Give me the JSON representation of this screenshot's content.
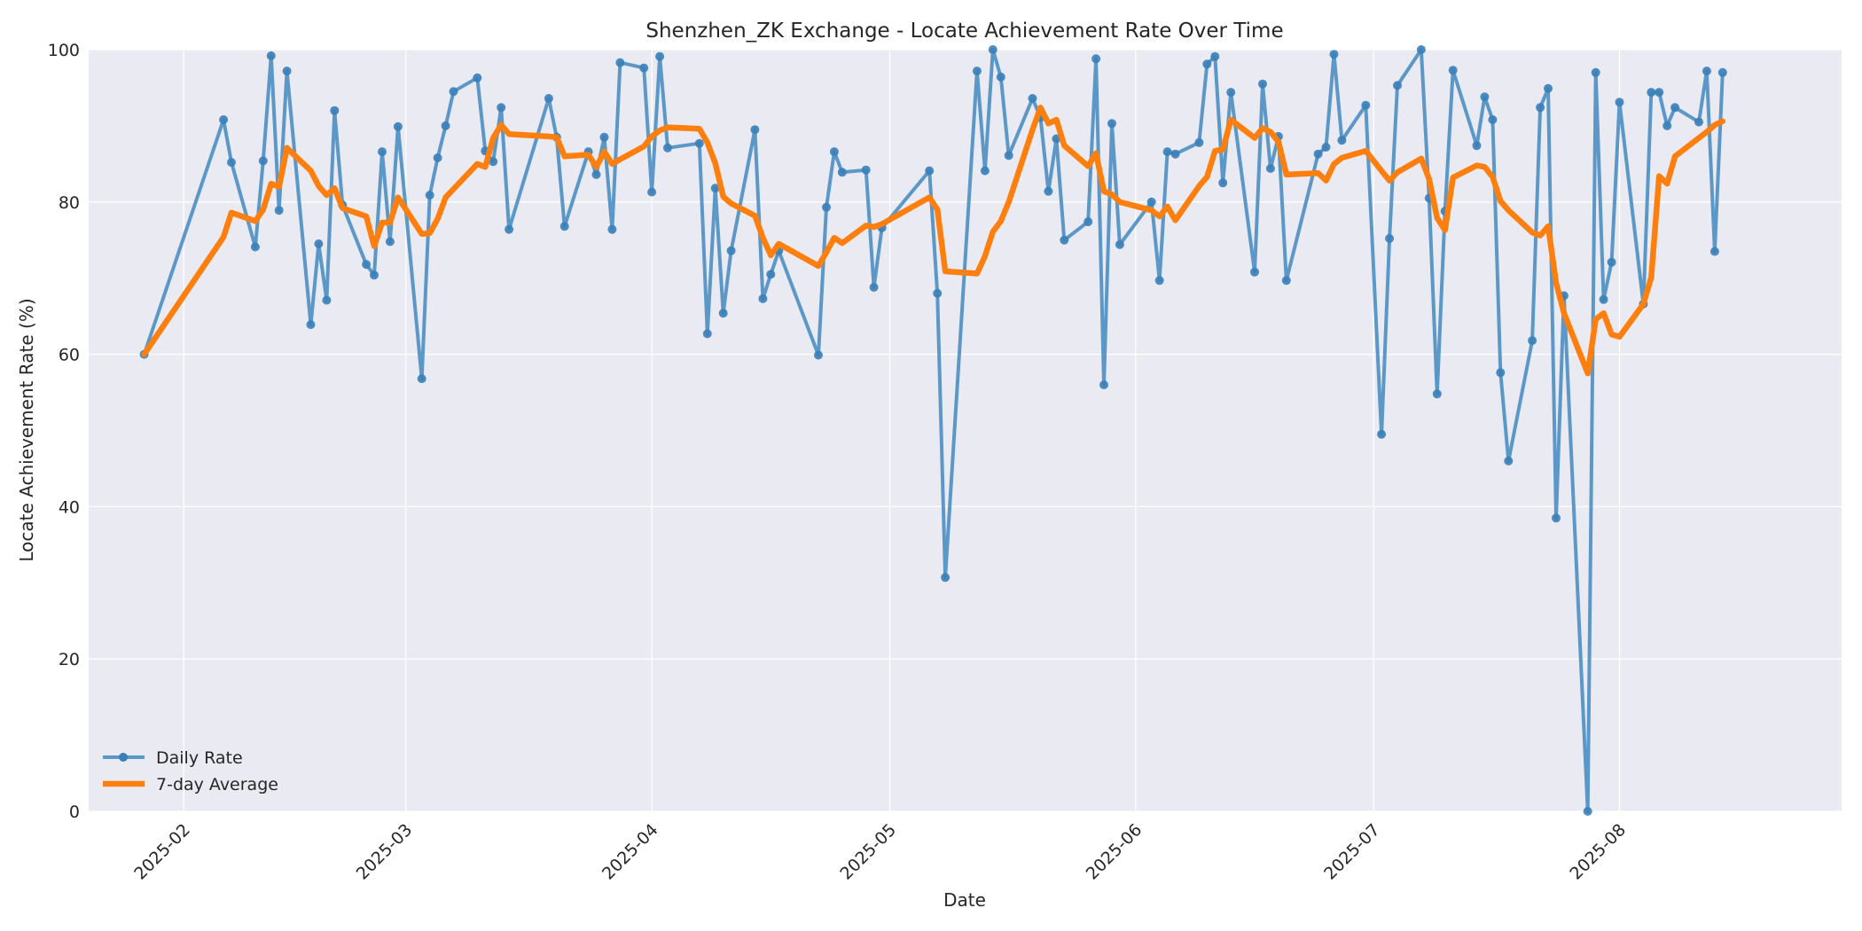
{
  "chart_data": {
    "type": "line",
    "title": "Shenzhen_ZK Exchange - Locate Achievement Rate Over Time",
    "xlabel": "Date",
    "ylabel": "Locate Achievement Rate (%)",
    "ylim": [
      0,
      100
    ],
    "xlim": [
      "2025-01-20",
      "2025-08-29"
    ],
    "yticks": [
      0,
      20,
      40,
      60,
      80,
      100
    ],
    "xticks": [
      "2025-02",
      "2025-03",
      "2025-04",
      "2025-05",
      "2025-06",
      "2025-07",
      "2025-08"
    ],
    "xtick_dates": [
      "2025-02-01",
      "2025-03-01",
      "2025-04-01",
      "2025-05-01",
      "2025-06-01",
      "2025-07-01",
      "2025-08-01"
    ],
    "grid": true,
    "legend_position": "lower left",
    "colors": {
      "daily": "#4c8fc2",
      "avg": "#ff7f0e",
      "plot_bg": "#eaeaf2",
      "grid": "#ffffff"
    },
    "series": [
      {
        "name": "Daily Rate",
        "style": "line-with-markers",
        "points": [
          [
            "2025-01-27",
            60.0
          ],
          [
            "2025-02-06",
            90.8
          ],
          [
            "2025-02-07",
            85.2
          ],
          [
            "2025-02-10",
            74.1
          ],
          [
            "2025-02-11",
            85.4
          ],
          [
            "2025-02-12",
            99.2
          ],
          [
            "2025-02-13",
            78.9
          ],
          [
            "2025-02-14",
            97.2
          ],
          [
            "2025-02-17",
            63.9
          ],
          [
            "2025-02-18",
            74.5
          ],
          [
            "2025-02-19",
            67.1
          ],
          [
            "2025-02-20",
            92.0
          ],
          [
            "2025-02-21",
            79.6
          ],
          [
            "2025-02-24",
            71.8
          ],
          [
            "2025-02-25",
            70.4
          ],
          [
            "2025-02-26",
            86.6
          ],
          [
            "2025-02-27",
            74.8
          ],
          [
            "2025-02-28",
            89.9
          ],
          [
            "2025-03-03",
            56.8
          ],
          [
            "2025-03-04",
            80.9
          ],
          [
            "2025-03-05",
            85.8
          ],
          [
            "2025-03-06",
            90.0
          ],
          [
            "2025-03-07",
            94.5
          ],
          [
            "2025-03-10",
            96.3
          ],
          [
            "2025-03-11",
            86.7
          ],
          [
            "2025-03-12",
            85.3
          ],
          [
            "2025-03-13",
            92.4
          ],
          [
            "2025-03-14",
            76.4
          ],
          [
            "2025-03-19",
            93.6
          ],
          [
            "2025-03-20",
            88.5
          ],
          [
            "2025-03-21",
            76.8
          ],
          [
            "2025-03-24",
            86.6
          ],
          [
            "2025-03-25",
            83.6
          ],
          [
            "2025-03-26",
            88.5
          ],
          [
            "2025-03-27",
            76.4
          ],
          [
            "2025-03-28",
            98.3
          ],
          [
            "2025-03-31",
            97.6
          ],
          [
            "2025-04-01",
            81.3
          ],
          [
            "2025-04-02",
            99.1
          ],
          [
            "2025-04-03",
            87.1
          ],
          [
            "2025-04-07",
            87.7
          ],
          [
            "2025-04-08",
            62.7
          ],
          [
            "2025-04-09",
            81.8
          ],
          [
            "2025-04-10",
            65.4
          ],
          [
            "2025-04-11",
            73.6
          ],
          [
            "2025-04-14",
            89.5
          ],
          [
            "2025-04-15",
            67.3
          ],
          [
            "2025-04-16",
            70.5
          ],
          [
            "2025-04-17",
            73.6
          ],
          [
            "2025-04-22",
            59.9
          ],
          [
            "2025-04-23",
            79.3
          ],
          [
            "2025-04-24",
            86.6
          ],
          [
            "2025-04-25",
            83.9
          ],
          [
            "2025-04-28",
            84.2
          ],
          [
            "2025-04-29",
            68.8
          ],
          [
            "2025-04-30",
            76.6
          ],
          [
            "2025-05-06",
            84.1
          ],
          [
            "2025-05-07",
            68.0
          ],
          [
            "2025-05-08",
            30.7
          ],
          [
            "2025-05-12",
            97.2
          ],
          [
            "2025-05-13",
            84.1
          ],
          [
            "2025-05-14",
            100.0
          ],
          [
            "2025-05-15",
            96.4
          ],
          [
            "2025-05-16",
            86.1
          ],
          [
            "2025-05-19",
            93.6
          ],
          [
            "2025-05-20",
            91.1
          ],
          [
            "2025-05-21",
            81.4
          ],
          [
            "2025-05-22",
            88.3
          ],
          [
            "2025-05-23",
            75.0
          ],
          [
            "2025-05-26",
            77.4
          ],
          [
            "2025-05-27",
            98.8
          ],
          [
            "2025-05-28",
            56.0
          ],
          [
            "2025-05-29",
            90.3
          ],
          [
            "2025-05-30",
            74.4
          ],
          [
            "2025-06-03",
            80.0
          ],
          [
            "2025-06-04",
            69.7
          ],
          [
            "2025-06-05",
            86.6
          ],
          [
            "2025-06-06",
            86.3
          ],
          [
            "2025-06-09",
            87.8
          ],
          [
            "2025-06-10",
            98.1
          ],
          [
            "2025-06-11",
            99.1
          ],
          [
            "2025-06-12",
            82.5
          ],
          [
            "2025-06-13",
            94.4
          ],
          [
            "2025-06-16",
            70.8
          ],
          [
            "2025-06-17",
            95.5
          ],
          [
            "2025-06-18",
            84.4
          ],
          [
            "2025-06-19",
            88.6
          ],
          [
            "2025-06-20",
            69.7
          ],
          [
            "2025-06-24",
            86.3
          ],
          [
            "2025-06-25",
            87.2
          ],
          [
            "2025-06-26",
            99.4
          ],
          [
            "2025-06-27",
            88.1
          ],
          [
            "2025-06-30",
            92.7
          ],
          [
            "2025-07-02",
            49.5
          ],
          [
            "2025-07-03",
            75.2
          ],
          [
            "2025-07-04",
            95.3
          ],
          [
            "2025-07-07",
            100.0
          ],
          [
            "2025-07-08",
            80.5
          ],
          [
            "2025-07-09",
            54.8
          ],
          [
            "2025-07-10",
            78.8
          ],
          [
            "2025-07-11",
            97.3
          ],
          [
            "2025-07-14",
            87.4
          ],
          [
            "2025-07-15",
            93.8
          ],
          [
            "2025-07-16",
            90.8
          ],
          [
            "2025-07-17",
            57.6
          ],
          [
            "2025-07-18",
            46.0
          ],
          [
            "2025-07-21",
            61.8
          ],
          [
            "2025-07-22",
            92.4
          ],
          [
            "2025-07-23",
            94.9
          ],
          [
            "2025-07-24",
            38.5
          ],
          [
            "2025-07-25",
            67.7
          ],
          [
            "2025-07-28",
            0.0
          ],
          [
            "2025-07-29",
            97.0
          ],
          [
            "2025-07-30",
            67.2
          ],
          [
            "2025-07-31",
            72.1
          ],
          [
            "2025-08-01",
            93.1
          ],
          [
            "2025-08-04",
            66.6
          ],
          [
            "2025-08-05",
            94.4
          ],
          [
            "2025-08-06",
            94.4
          ],
          [
            "2025-08-07",
            90.0
          ],
          [
            "2025-08-08",
            92.4
          ],
          [
            "2025-08-11",
            90.5
          ],
          [
            "2025-08-12",
            97.2
          ],
          [
            "2025-08-13",
            73.5
          ],
          [
            "2025-08-14",
            97.0
          ]
        ]
      },
      {
        "name": "7-day Average",
        "style": "thick-line",
        "points": [
          [
            "2025-01-27",
            60.0
          ],
          [
            "2025-02-06",
            75.4
          ],
          [
            "2025-02-07",
            78.6
          ],
          [
            "2025-02-10",
            77.5
          ],
          [
            "2025-02-11",
            79.0
          ],
          [
            "2025-02-12",
            82.4
          ],
          [
            "2025-02-13",
            82.0
          ],
          [
            "2025-02-14",
            87.1
          ],
          [
            "2025-02-17",
            84.1
          ],
          [
            "2025-02-18",
            82.1
          ],
          [
            "2025-02-19",
            80.9
          ],
          [
            "2025-02-20",
            81.8
          ],
          [
            "2025-02-21",
            79.2
          ],
          [
            "2025-02-24",
            78.1
          ],
          [
            "2025-02-25",
            74.2
          ],
          [
            "2025-02-26",
            77.3
          ],
          [
            "2025-02-27",
            77.3
          ],
          [
            "2025-02-28",
            80.6
          ],
          [
            "2025-03-03",
            75.8
          ],
          [
            "2025-03-04",
            75.9
          ],
          [
            "2025-03-05",
            77.8
          ],
          [
            "2025-03-06",
            80.6
          ],
          [
            "2025-03-07",
            81.7
          ],
          [
            "2025-03-10",
            85.0
          ],
          [
            "2025-03-11",
            84.6
          ],
          [
            "2025-03-12",
            88.4
          ],
          [
            "2025-03-13",
            90.1
          ],
          [
            "2025-03-14",
            88.9
          ],
          [
            "2025-03-19",
            88.6
          ],
          [
            "2025-03-20",
            88.5
          ],
          [
            "2025-03-21",
            86.0
          ],
          [
            "2025-03-24",
            86.2
          ],
          [
            "2025-03-25",
            84.6
          ],
          [
            "2025-03-26",
            86.6
          ],
          [
            "2025-03-27",
            85.0
          ],
          [
            "2025-03-28",
            85.6
          ],
          [
            "2025-03-31",
            87.3
          ],
          [
            "2025-04-01",
            88.6
          ],
          [
            "2025-04-02",
            89.4
          ],
          [
            "2025-04-03",
            89.8
          ],
          [
            "2025-04-07",
            89.6
          ],
          [
            "2025-04-08",
            87.8
          ],
          [
            "2025-04-09",
            85.1
          ],
          [
            "2025-04-10",
            80.7
          ],
          [
            "2025-04-11",
            79.8
          ],
          [
            "2025-04-14",
            78.2
          ],
          [
            "2025-04-15",
            75.3
          ],
          [
            "2025-04-16",
            73.0
          ],
          [
            "2025-04-17",
            74.5
          ],
          [
            "2025-04-22",
            71.6
          ],
          [
            "2025-04-23",
            73.4
          ],
          [
            "2025-04-24",
            75.3
          ],
          [
            "2025-04-25",
            74.6
          ],
          [
            "2025-04-28",
            76.9
          ],
          [
            "2025-04-29",
            76.7
          ],
          [
            "2025-04-30",
            77.1
          ],
          [
            "2025-05-06",
            80.6
          ],
          [
            "2025-05-07",
            79.0
          ],
          [
            "2025-05-08",
            70.9
          ],
          [
            "2025-05-12",
            70.6
          ],
          [
            "2025-05-13",
            72.9
          ],
          [
            "2025-05-14",
            76.1
          ],
          [
            "2025-05-15",
            77.5
          ],
          [
            "2025-05-16",
            80.0
          ],
          [
            "2025-05-19",
            89.5
          ],
          [
            "2025-05-20",
            92.4
          ],
          [
            "2025-05-21",
            90.3
          ],
          [
            "2025-05-22",
            90.8
          ],
          [
            "2025-05-23",
            87.4
          ],
          [
            "2025-05-26",
            84.7
          ],
          [
            "2025-05-27",
            86.4
          ],
          [
            "2025-05-28",
            81.4
          ],
          [
            "2025-05-29",
            81.0
          ],
          [
            "2025-05-30",
            80.0
          ],
          [
            "2025-06-03",
            78.9
          ],
          [
            "2025-06-04",
            78.1
          ],
          [
            "2025-06-05",
            79.4
          ],
          [
            "2025-06-06",
            77.6
          ],
          [
            "2025-06-09",
            82.1
          ],
          [
            "2025-06-10",
            83.3
          ],
          [
            "2025-06-11",
            86.7
          ],
          [
            "2025-06-12",
            86.9
          ],
          [
            "2025-06-13",
            90.8
          ],
          [
            "2025-06-16",
            88.4
          ],
          [
            "2025-06-17",
            89.7
          ],
          [
            "2025-06-18",
            89.2
          ],
          [
            "2025-06-19",
            87.9
          ],
          [
            "2025-06-20",
            83.6
          ],
          [
            "2025-06-24",
            83.8
          ],
          [
            "2025-06-25",
            82.8
          ],
          [
            "2025-06-26",
            85.0
          ],
          [
            "2025-06-27",
            85.8
          ],
          [
            "2025-06-30",
            86.7
          ],
          [
            "2025-07-02",
            84.1
          ],
          [
            "2025-07-03",
            82.8
          ],
          [
            "2025-07-04",
            83.9
          ],
          [
            "2025-07-07",
            85.7
          ],
          [
            "2025-07-08",
            83.0
          ],
          [
            "2025-07-09",
            77.9
          ],
          [
            "2025-07-10",
            76.3
          ],
          [
            "2025-07-11",
            83.2
          ],
          [
            "2025-07-14",
            84.8
          ],
          [
            "2025-07-15",
            84.6
          ],
          [
            "2025-07-16",
            83.3
          ],
          [
            "2025-07-17",
            80.1
          ],
          [
            "2025-07-18",
            78.9
          ],
          [
            "2025-07-21",
            76.0
          ],
          [
            "2025-07-22",
            75.6
          ],
          [
            "2025-07-23",
            76.8
          ],
          [
            "2025-07-24",
            69.4
          ],
          [
            "2025-07-25",
            65.4
          ],
          [
            "2025-07-28",
            57.5
          ],
          [
            "2025-07-29",
            64.6
          ],
          [
            "2025-07-30",
            65.4
          ],
          [
            "2025-07-31",
            62.6
          ],
          [
            "2025-08-01",
            62.3
          ],
          [
            "2025-08-04",
            66.6
          ],
          [
            "2025-08-05",
            70.1
          ],
          [
            "2025-08-06",
            83.4
          ],
          [
            "2025-08-07",
            82.4
          ],
          [
            "2025-08-08",
            86.0
          ],
          [
            "2025-08-11",
            88.4
          ],
          [
            "2025-08-12",
            89.2
          ],
          [
            "2025-08-13",
            90.1
          ],
          [
            "2025-08-14",
            90.6
          ]
        ]
      }
    ]
  },
  "title": "Shenzhen_ZK Exchange - Locate Achievement Rate Over Time",
  "axes": {
    "xlabel": "Date",
    "ylabel": "Locate Achievement Rate (%)",
    "yticks": [
      "0",
      "20",
      "40",
      "60",
      "80",
      "100"
    ],
    "xticks": [
      "2025-02",
      "2025-03",
      "2025-04",
      "2025-05",
      "2025-06",
      "2025-07",
      "2025-08"
    ]
  },
  "legend": {
    "items": [
      {
        "label": "Daily Rate"
      },
      {
        "label": "7-day Average"
      }
    ]
  }
}
